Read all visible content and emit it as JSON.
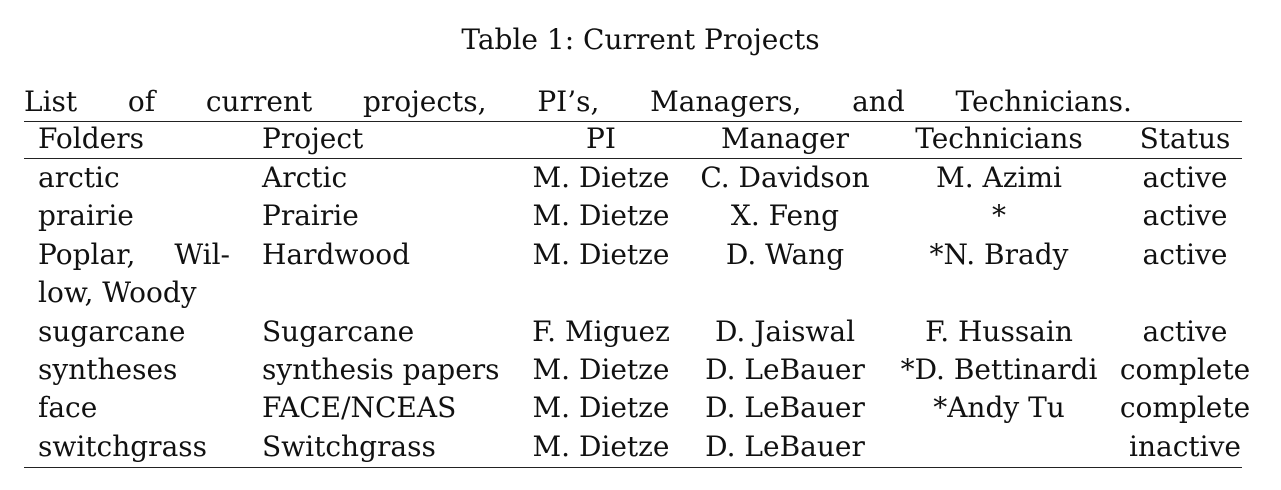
{
  "caption": "Table 1: Current Projects",
  "subtitle_words": [
    "List",
    "of",
    "current",
    "projects,",
    "PI’s,",
    "Managers,",
    "and",
    "Technicians."
  ],
  "table": {
    "headers": [
      "Folders",
      "Project",
      "PI",
      "Manager",
      "Technicians",
      "Status"
    ],
    "rows": [
      {
        "folders": "arctic",
        "project": "Arctic",
        "pi": "M. Dietze",
        "manager": "C. Davidson",
        "technicians": "M. Azimi",
        "status": "active"
      },
      {
        "folders": "prairie",
        "project": "Prairie",
        "pi": "M. Dietze",
        "manager": "X. Feng",
        "technicians": "*",
        "status": "active"
      },
      {
        "folders_line1": [
          "Poplar,",
          "Wil-"
        ],
        "folders_line2": "low, Woody",
        "project": "Hardwood",
        "pi": "M. Dietze",
        "manager": "D. Wang",
        "technicians": "*N. Brady",
        "status": "active"
      },
      {
        "folders": "sugarcane",
        "project": "Sugarcane",
        "pi": "F. Miguez",
        "manager": "D. Jaiswal",
        "technicians": "F. Hussain",
        "status": "active"
      },
      {
        "folders": "syntheses",
        "project": "synthesis papers",
        "pi": "M. Dietze",
        "manager": "D. LeBauer",
        "technicians": "*D. Bettinardi",
        "status": "complete"
      },
      {
        "folders": "face",
        "project": "FACE/NCEAS",
        "pi": "M. Dietze",
        "manager": "D. LeBauer",
        "technicians": "*Andy Tu",
        "status": "complete"
      },
      {
        "folders": "switchgrass",
        "project": "Switchgrass",
        "pi": "M. Dietze",
        "manager": "D. LeBauer",
        "technicians": "",
        "status": "inactive"
      }
    ]
  }
}
